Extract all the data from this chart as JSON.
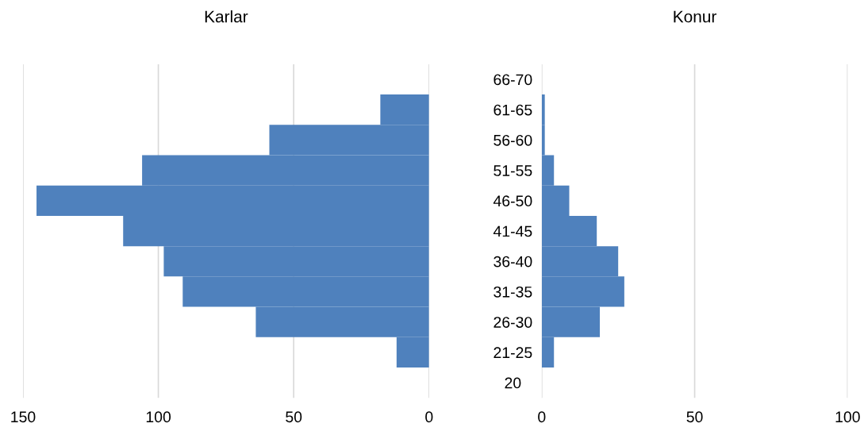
{
  "chart_data": [
    {
      "type": "bar",
      "orientation": "horizontal",
      "title": "Karlar",
      "categories": [
        "66-70",
        "61-65",
        "56-60",
        "51-55",
        "46-50",
        "41-45",
        "36-40",
        "31-35",
        "26-30",
        "21-25",
        "20"
      ],
      "series": [
        {
          "color": "#4f81bd",
          "values": [
            0,
            18,
            59,
            106,
            145,
            113,
            98,
            91,
            64,
            12,
            0
          ]
        }
      ],
      "xlim": [
        150,
        0
      ],
      "xticks": [
        150,
        100,
        50,
        0
      ],
      "grid": "x",
      "legend": false
    },
    {
      "type": "bar",
      "orientation": "horizontal",
      "title": "Konur",
      "categories": [
        null,
        null,
        null,
        null,
        null,
        null,
        null,
        null,
        null,
        null,
        null
      ],
      "series": [
        {
          "color": "#4f81bd",
          "values": [
            0,
            1,
            1,
            4,
            9,
            18,
            25,
            27,
            19,
            4,
            0
          ]
        }
      ],
      "xlim": [
        0,
        100
      ],
      "xticks": [
        0,
        50,
        100
      ],
      "grid": "x",
      "tick_labels": "x",
      "legend": false
    }
  ]
}
